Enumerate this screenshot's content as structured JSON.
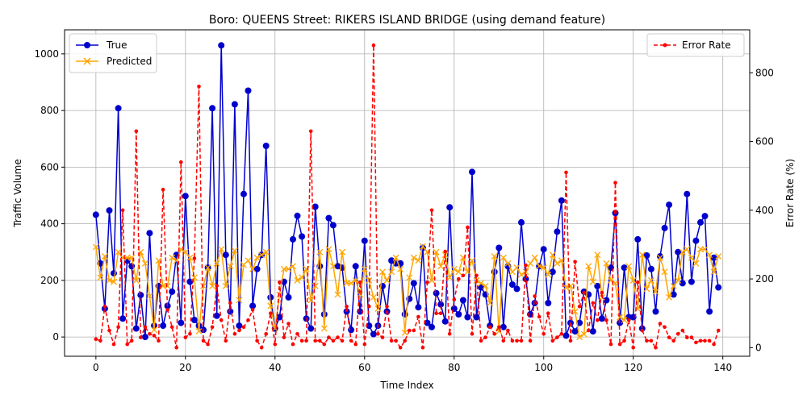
{
  "chart_data": {
    "type": "line",
    "title": "Boro: QUEENS Street: RIKERS ISLAND BRIDGE (using demand feature)",
    "xlabel": "Time Index",
    "ylabel": "Traffic Volume",
    "y2label": "Error Rate (%)",
    "xlim": [
      -7,
      146
    ],
    "ylim": [
      -68,
      1085
    ],
    "y2lim": [
      -25,
      925
    ],
    "x_ticks": [
      0,
      20,
      40,
      60,
      80,
      100,
      120,
      140
    ],
    "y_ticks": [
      0,
      200,
      400,
      600,
      800,
      1000
    ],
    "y2_ticks": [
      0,
      200,
      400,
      600,
      800
    ],
    "grid": true,
    "legend_left": "upper-left",
    "legend_right": "upper-right",
    "x": [
      0,
      1,
      2,
      3,
      4,
      5,
      6,
      7,
      8,
      9,
      10,
      11,
      12,
      13,
      14,
      15,
      16,
      17,
      18,
      19,
      20,
      21,
      22,
      23,
      24,
      25,
      26,
      27,
      28,
      29,
      30,
      31,
      32,
      33,
      34,
      35,
      36,
      37,
      38,
      39,
      40,
      41,
      42,
      43,
      44,
      45,
      46,
      47,
      48,
      49,
      50,
      51,
      52,
      53,
      54,
      55,
      56,
      57,
      58,
      59,
      60,
      61,
      62,
      63,
      64,
      65,
      66,
      67,
      68,
      69,
      70,
      71,
      72,
      73,
      74,
      75,
      76,
      77,
      78,
      79,
      80,
      81,
      82,
      83,
      84,
      85,
      86,
      87,
      88,
      89,
      90,
      91,
      92,
      93,
      94,
      95,
      96,
      97,
      98,
      99,
      100,
      101,
      102,
      103,
      104,
      105,
      106,
      107,
      108,
      109,
      110,
      111,
      112,
      113,
      114,
      115,
      116,
      117,
      118,
      119,
      120,
      121,
      122,
      123,
      124,
      125,
      126,
      127,
      128,
      129,
      130,
      131,
      132,
      133,
      134,
      135,
      136,
      137,
      138,
      139
    ],
    "series": [
      {
        "name": "True",
        "axis": "left",
        "color": "#0000cd",
        "marker": "circle",
        "linestyle": "solid",
        "values": [
          432,
          260,
          100,
          447,
          225,
          808,
          65,
          270,
          250,
          30,
          148,
          0,
          367,
          40,
          180,
          40,
          110,
          160,
          290,
          50,
          498,
          195,
          60,
          40,
          25,
          245,
          808,
          75,
          1030,
          290,
          90,
          822,
          40,
          505,
          870,
          110,
          240,
          290,
          675,
          140,
          30,
          70,
          195,
          140,
          345,
          428,
          355,
          65,
          30,
          460,
          250,
          80,
          420,
          395,
          250,
          245,
          90,
          25,
          250,
          90,
          340,
          40,
          10,
          40,
          180,
          90,
          270,
          260,
          260,
          80,
          135,
          190,
          105,
          315,
          50,
          35,
          155,
          115,
          55,
          458,
          100,
          80,
          130,
          70,
          583,
          70,
          175,
          150,
          40,
          230,
          315,
          35,
          250,
          185,
          170,
          405,
          205,
          80,
          120,
          250,
          310,
          120,
          230,
          372,
          482,
          5,
          50,
          20,
          50,
          160,
          150,
          20,
          180,
          65,
          130,
          245,
          438,
          50,
          245,
          70,
          70,
          345,
          30,
          288,
          240,
          90,
          285,
          385,
          467,
          150,
          300,
          190,
          505,
          195,
          340,
          405,
          427,
          90,
          280,
          175
        ]
      },
      {
        "name": "Predicted",
        "axis": "left",
        "color": "#ffa500",
        "marker": "x",
        "linestyle": "solid",
        "values": [
          318,
          210,
          285,
          200,
          195,
          300,
          280,
          280,
          280,
          200,
          300,
          260,
          145,
          25,
          270,
          180,
          180,
          280,
          270,
          310,
          300,
          280,
          210,
          20,
          180,
          245,
          180,
          260,
          310,
          180,
          250,
          305,
          130,
          255,
          270,
          240,
          280,
          290,
          300,
          110,
          30,
          150,
          240,
          240,
          250,
          200,
          210,
          240,
          130,
          180,
          300,
          30,
          310,
          250,
          150,
          300,
          190,
          190,
          200,
          150,
          240,
          200,
          140,
          100,
          230,
          200,
          230,
          280,
          240,
          15,
          210,
          280,
          270,
          320,
          300,
          200,
          300,
          250,
          290,
          210,
          240,
          230,
          280,
          230,
          270,
          200,
          190,
          180,
          120,
          285,
          20,
          280,
          260,
          230,
          245,
          220,
          230,
          260,
          280,
          250,
          245,
          220,
          290,
          260,
          270,
          175,
          180,
          90,
          0,
          10,
          250,
          195,
          290,
          140,
          260,
          200,
          190,
          70,
          60,
          250,
          200,
          100,
          290,
          170,
          200,
          160,
          280,
          230,
          140,
          180,
          200,
          300,
          310,
          280,
          260,
          310,
          310,
          290,
          230,
          285
        ]
      },
      {
        "name": "Error Rate",
        "axis": "right",
        "color": "#ff0000",
        "marker": "dot",
        "linestyle": "dashed",
        "values": [
          25,
          20,
          120,
          50,
          10,
          60,
          400,
          10,
          20,
          630,
          30,
          60,
          40,
          35,
          20,
          460,
          110,
          60,
          0,
          540,
          30,
          40,
          260,
          760,
          20,
          10,
          60,
          180,
          80,
          20,
          130,
          40,
          50,
          60,
          80,
          110,
          20,
          0,
          40,
          100,
          10,
          190,
          30,
          70,
          10,
          40,
          20,
          20,
          630,
          20,
          20,
          10,
          30,
          20,
          30,
          20,
          120,
          20,
          10,
          190,
          10,
          120,
          880,
          40,
          30,
          120,
          20,
          20,
          0,
          20,
          50,
          50,
          90,
          0,
          190,
          400,
          100,
          100,
          280,
          40,
          140,
          200,
          210,
          350,
          40,
          210,
          20,
          30,
          60,
          40,
          60,
          20,
          50,
          20,
          20,
          20,
          240,
          20,
          150,
          90,
          40,
          100,
          20,
          30,
          40,
          510,
          20,
          250,
          120,
          160,
          50,
          130,
          80,
          160,
          80,
          10,
          480,
          10,
          20,
          80,
          0,
          190,
          50,
          20,
          20,
          0,
          70,
          60,
          30,
          20,
          40,
          50,
          30,
          30,
          15,
          20,
          20,
          20,
          10,
          50
        ]
      }
    ]
  }
}
